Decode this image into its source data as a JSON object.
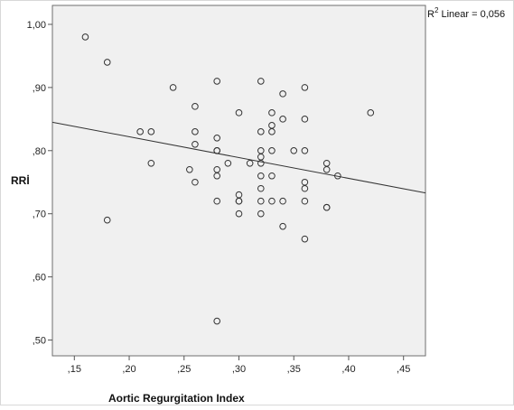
{
  "chart_data": {
    "type": "scatter",
    "title": "",
    "xlabel": "Aortic Regurgitation Index",
    "ylabel": "RRİ",
    "xlim": [
      0.13,
      0.47
    ],
    "ylim": [
      0.475,
      1.03
    ],
    "x_ticks": [
      0.15,
      0.2,
      0.25,
      0.3,
      0.35,
      0.4,
      0.45
    ],
    "x_tick_labels": [
      ",15",
      ",20",
      ",25",
      ",30",
      ",35",
      ",40",
      ",45"
    ],
    "y_ticks": [
      0.5,
      0.6,
      0.7,
      0.8,
      0.9,
      1.0
    ],
    "y_tick_labels": [
      ",50",
      ",60",
      ",70",
      ",80",
      ",90",
      "1,00"
    ],
    "grid": false,
    "background": "#f0f0f0",
    "marker_color": "#333333",
    "fit_line": {
      "label_prefix": "R",
      "label_sup": "2",
      "label_suffix": " Linear = 0,056",
      "x": [
        0.13,
        0.47
      ],
      "y": [
        0.845,
        0.733
      ]
    },
    "points": [
      {
        "x": 0.16,
        "y": 0.98
      },
      {
        "x": 0.18,
        "y": 0.94
      },
      {
        "x": 0.18,
        "y": 0.69
      },
      {
        "x": 0.21,
        "y": 0.83
      },
      {
        "x": 0.22,
        "y": 0.83
      },
      {
        "x": 0.22,
        "y": 0.78
      },
      {
        "x": 0.24,
        "y": 0.9
      },
      {
        "x": 0.255,
        "y": 0.77
      },
      {
        "x": 0.26,
        "y": 0.87
      },
      {
        "x": 0.26,
        "y": 0.83
      },
      {
        "x": 0.26,
        "y": 0.81
      },
      {
        "x": 0.26,
        "y": 0.75
      },
      {
        "x": 0.28,
        "y": 0.91
      },
      {
        "x": 0.28,
        "y": 0.82
      },
      {
        "x": 0.28,
        "y": 0.8
      },
      {
        "x": 0.28,
        "y": 0.8
      },
      {
        "x": 0.28,
        "y": 0.77
      },
      {
        "x": 0.28,
        "y": 0.76
      },
      {
        "x": 0.28,
        "y": 0.72
      },
      {
        "x": 0.28,
        "y": 0.53
      },
      {
        "x": 0.29,
        "y": 0.78
      },
      {
        "x": 0.3,
        "y": 0.86
      },
      {
        "x": 0.3,
        "y": 0.73
      },
      {
        "x": 0.3,
        "y": 0.72
      },
      {
        "x": 0.3,
        "y": 0.72
      },
      {
        "x": 0.3,
        "y": 0.7
      },
      {
        "x": 0.31,
        "y": 0.78
      },
      {
        "x": 0.32,
        "y": 0.91
      },
      {
        "x": 0.32,
        "y": 0.83
      },
      {
        "x": 0.32,
        "y": 0.8
      },
      {
        "x": 0.32,
        "y": 0.79
      },
      {
        "x": 0.32,
        "y": 0.78
      },
      {
        "x": 0.32,
        "y": 0.76
      },
      {
        "x": 0.32,
        "y": 0.74
      },
      {
        "x": 0.32,
        "y": 0.72
      },
      {
        "x": 0.32,
        "y": 0.7
      },
      {
        "x": 0.33,
        "y": 0.86
      },
      {
        "x": 0.33,
        "y": 0.84
      },
      {
        "x": 0.33,
        "y": 0.83
      },
      {
        "x": 0.33,
        "y": 0.8
      },
      {
        "x": 0.33,
        "y": 0.76
      },
      {
        "x": 0.33,
        "y": 0.72
      },
      {
        "x": 0.34,
        "y": 0.89
      },
      {
        "x": 0.34,
        "y": 0.85
      },
      {
        "x": 0.34,
        "y": 0.72
      },
      {
        "x": 0.34,
        "y": 0.68
      },
      {
        "x": 0.35,
        "y": 0.8
      },
      {
        "x": 0.36,
        "y": 0.9
      },
      {
        "x": 0.36,
        "y": 0.85
      },
      {
        "x": 0.36,
        "y": 0.8
      },
      {
        "x": 0.36,
        "y": 0.75
      },
      {
        "x": 0.36,
        "y": 0.74
      },
      {
        "x": 0.36,
        "y": 0.72
      },
      {
        "x": 0.36,
        "y": 0.66
      },
      {
        "x": 0.38,
        "y": 0.78
      },
      {
        "x": 0.38,
        "y": 0.77
      },
      {
        "x": 0.38,
        "y": 0.71
      },
      {
        "x": 0.38,
        "y": 0.71
      },
      {
        "x": 0.39,
        "y": 0.76
      },
      {
        "x": 0.42,
        "y": 0.86
      }
    ]
  }
}
